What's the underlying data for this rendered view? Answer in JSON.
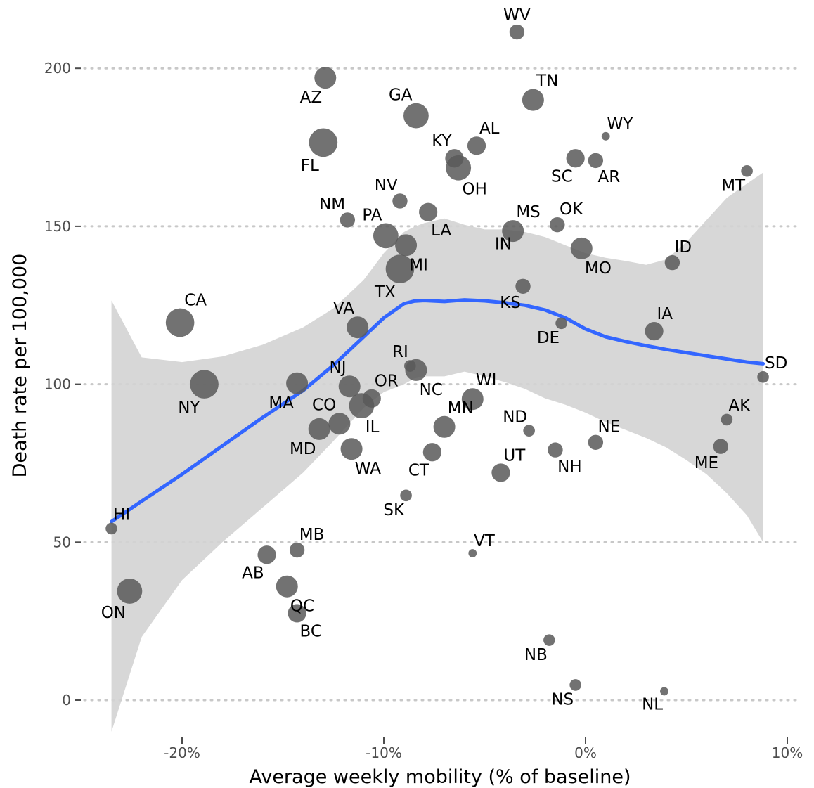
{
  "chart_data": {
    "type": "scatter",
    "title": "",
    "xlabel": "Average weekly mobility (% of baseline)",
    "ylabel": "Death rate per 100,000",
    "xlim": [
      -24.5,
      10.5
    ],
    "ylim": [
      -10,
      215
    ],
    "x_ticks": [
      -20,
      -10,
      0,
      10
    ],
    "x_tick_labels": [
      "-20%",
      "-10%",
      "0%",
      "10%"
    ],
    "y_ticks": [
      0,
      50,
      100,
      150,
      200
    ],
    "y_tick_labels": [
      "0",
      "50",
      "100",
      "150",
      "200"
    ],
    "grid": "horizontal dotted",
    "legend": "none",
    "colors": {
      "point": "#595959",
      "smooth_line": "#3366ff",
      "confidence_band": "#d3d3d3",
      "grid": "#c8c8c8"
    },
    "points": [
      {
        "label": "WV",
        "x": -3.4,
        "y": 211.5,
        "size": 3,
        "label_pos": "above"
      },
      {
        "label": "AZ",
        "x": -12.9,
        "y": 197,
        "size": 5,
        "label_pos": "below-left"
      },
      {
        "label": "TN",
        "x": -2.6,
        "y": 190,
        "size": 5,
        "label_pos": "above-right"
      },
      {
        "label": "GA",
        "x": -8.4,
        "y": 185,
        "size": 6,
        "label_pos": "above-left"
      },
      {
        "label": "WY",
        "x": 1.0,
        "y": 178.5,
        "size": 1,
        "label_pos": "above-right"
      },
      {
        "label": "FL",
        "x": -13.0,
        "y": 176.5,
        "size": 7,
        "label_pos": "below-left"
      },
      {
        "label": "AL",
        "x": -5.4,
        "y": 175.5,
        "size": 4,
        "label_pos": "above-right"
      },
      {
        "label": "KY",
        "x": -6.5,
        "y": 171.5,
        "size": 4,
        "label_pos": "above-left"
      },
      {
        "label": "SC",
        "x": -0.5,
        "y": 171.5,
        "size": 4,
        "label_pos": "below-left"
      },
      {
        "label": "AR",
        "x": 0.5,
        "y": 170.8,
        "size": 3,
        "label_pos": "below-right"
      },
      {
        "label": "OH",
        "x": -6.3,
        "y": 168.5,
        "size": 6,
        "label_pos": "below-right"
      },
      {
        "label": "MT",
        "x": 8.0,
        "y": 167.5,
        "size": 2,
        "label_pos": "below-left"
      },
      {
        "label": "NV",
        "x": -9.2,
        "y": 158,
        "size": 3,
        "label_pos": "above-left"
      },
      {
        "label": "LA",
        "x": -7.8,
        "y": 154.5,
        "size": 4,
        "label_pos": "below-right"
      },
      {
        "label": "NM",
        "x": -11.8,
        "y": 152,
        "size": 3,
        "label_pos": "above-left"
      },
      {
        "label": "OK",
        "x": -1.4,
        "y": 150.5,
        "size": 3,
        "label_pos": "above-right"
      },
      {
        "label": "MS",
        "x": -3.6,
        "y": 148.5,
        "size": 5,
        "label_pos": "above-right"
      },
      {
        "label": "PA",
        "x": -9.9,
        "y": 147,
        "size": 6,
        "label_pos": "above-left"
      },
      {
        "label": "MI",
        "x": -8.9,
        "y": 144,
        "size": 5,
        "label_pos": "below-right"
      },
      {
        "label": "MO",
        "x": -0.2,
        "y": 143,
        "size": 5,
        "label_pos": "below-right"
      },
      {
        "label": "IN",
        "x": -3.6,
        "y": 148.5,
        "size": 0,
        "label_pos": "below-left"
      },
      {
        "label": "ID",
        "x": 4.3,
        "y": 138.5,
        "size": 3,
        "label_pos": "above-right"
      },
      {
        "label": "TX",
        "x": -9.2,
        "y": 136.5,
        "size": 7,
        "label_pos": "below-left"
      },
      {
        "label": "KS",
        "x": -3.1,
        "y": 131,
        "size": 3,
        "label_pos": "below-left"
      },
      {
        "label": "CA",
        "x": -20.1,
        "y": 119.5,
        "size": 7,
        "label_pos": "above-right"
      },
      {
        "label": "DE",
        "x": -1.2,
        "y": 119.3,
        "size": 2,
        "label_pos": "below-left"
      },
      {
        "label": "VA",
        "x": -11.3,
        "y": 118,
        "size": 5,
        "label_pos": "above-left"
      },
      {
        "label": "IA",
        "x": 3.4,
        "y": 116.8,
        "size": 4,
        "label_pos": "above-right"
      },
      {
        "label": "RI",
        "x": -8.7,
        "y": 105.8,
        "size": 2,
        "label_pos": "above-left"
      },
      {
        "label": "NC",
        "x": -8.4,
        "y": 104.5,
        "size": 5,
        "label_pos": "below-right"
      },
      {
        "label": "SD",
        "x": 8.8,
        "y": 102.3,
        "size": 2,
        "label_pos": "above-right"
      },
      {
        "label": "NY",
        "x": -18.9,
        "y": 100,
        "size": 7,
        "label_pos": "below-left"
      },
      {
        "label": "MA",
        "x": -14.3,
        "y": 100.3,
        "size": 5,
        "label_pos": "below-left"
      },
      {
        "label": "NJ",
        "x": -11.7,
        "y": 99.3,
        "size": 5,
        "label_pos": "above-left"
      },
      {
        "label": "OR",
        "x": -10.6,
        "y": 95.5,
        "size": 4,
        "label_pos": "above-right"
      },
      {
        "label": "WI",
        "x": -5.6,
        "y": 95.3,
        "size": 5,
        "label_pos": "above-right"
      },
      {
        "label": "IL",
        "x": -11.1,
        "y": 93.2,
        "size": 6,
        "label_pos": "below-right"
      },
      {
        "label": "AK",
        "x": 7.0,
        "y": 88.8,
        "size": 2,
        "label_pos": "above-right"
      },
      {
        "label": "CO",
        "x": -12.2,
        "y": 87.5,
        "size": 5,
        "label_pos": "above-left"
      },
      {
        "label": "MN",
        "x": -7.0,
        "y": 86.5,
        "size": 5,
        "label_pos": "above-right"
      },
      {
        "label": "MD",
        "x": -13.2,
        "y": 85.8,
        "size": 5,
        "label_pos": "below-left"
      },
      {
        "label": "ND",
        "x": -2.8,
        "y": 85.3,
        "size": 2,
        "label_pos": "above-left"
      },
      {
        "label": "NE",
        "x": 0.5,
        "y": 81.6,
        "size": 3,
        "label_pos": "above-right"
      },
      {
        "label": "ME",
        "x": 6.7,
        "y": 80.3,
        "size": 3,
        "label_pos": "below-left"
      },
      {
        "label": "WA",
        "x": -11.6,
        "y": 79.5,
        "size": 5,
        "label_pos": "below-right"
      },
      {
        "label": "NH",
        "x": -1.5,
        "y": 79.2,
        "size": 3,
        "label_pos": "below-right"
      },
      {
        "label": "CT",
        "x": -7.6,
        "y": 78.5,
        "size": 4,
        "label_pos": "below-left"
      },
      {
        "label": "UT",
        "x": -4.2,
        "y": 72,
        "size": 4,
        "label_pos": "above-right"
      },
      {
        "label": "SK",
        "x": -8.9,
        "y": 64.8,
        "size": 2,
        "label_pos": "below-left"
      },
      {
        "label": "HI",
        "x": -23.5,
        "y": 54.3,
        "size": 2,
        "label_pos": "above-right"
      },
      {
        "label": "MB",
        "x": -14.3,
        "y": 47.5,
        "size": 3,
        "label_pos": "above-right"
      },
      {
        "label": "VT",
        "x": -5.6,
        "y": 46.5,
        "size": 1,
        "label_pos": "above-right"
      },
      {
        "label": "AB",
        "x": -15.8,
        "y": 46,
        "size": 4,
        "label_pos": "below-left"
      },
      {
        "label": "QC",
        "x": -14.8,
        "y": 36,
        "size": 5,
        "label_pos": "below-right"
      },
      {
        "label": "ON",
        "x": -22.6,
        "y": 34.5,
        "size": 6,
        "label_pos": "below-left"
      },
      {
        "label": "BC",
        "x": -14.3,
        "y": 27.5,
        "size": 4,
        "label_pos": "below-right"
      },
      {
        "label": "NB",
        "x": -1.8,
        "y": 19,
        "size": 2,
        "label_pos": "below-left"
      },
      {
        "label": "NS",
        "x": -0.5,
        "y": 4.8,
        "size": 2,
        "label_pos": "below-left"
      },
      {
        "label": "NL",
        "x": 3.9,
        "y": 2.8,
        "size": 1,
        "label_pos": "below-left"
      }
    ],
    "smooth": {
      "x": [
        -23.5,
        -22,
        -20,
        -18,
        -16,
        -14,
        -12.5,
        -11,
        -10,
        -9,
        -8.5,
        -8,
        -7,
        -6,
        -5,
        -4,
        -3,
        -2,
        -1,
        0,
        1,
        2,
        3,
        4,
        5,
        6,
        7,
        8,
        8.8
      ],
      "y": [
        56.5,
        63,
        71.5,
        80.5,
        89.5,
        98,
        106,
        115,
        121,
        125.5,
        126.3,
        126.5,
        126.2,
        126.7,
        126.4,
        125.8,
        125,
        123.5,
        121,
        117.5,
        115,
        113.5,
        112.2,
        111,
        110,
        109,
        108,
        107,
        106.5
      ],
      "lower": [
        -10,
        20,
        38,
        50,
        61,
        72,
        82,
        92.5,
        97.5,
        100,
        101.8,
        102.5,
        102.5,
        104,
        102.5,
        100.7,
        98.5,
        95.5,
        93.5,
        91,
        88,
        85.5,
        83,
        80,
        76,
        71.5,
        65.5,
        58.5,
        50
      ],
      "upper": [
        126.5,
        108.5,
        107,
        108.8,
        112.5,
        118,
        124,
        133,
        141.5,
        148.2,
        149.8,
        151,
        152.5,
        150.5,
        149,
        149,
        148.2,
        146.6,
        144,
        141.5,
        140,
        139,
        137.8,
        139.5,
        145,
        152,
        159,
        163.5,
        167
      ]
    }
  }
}
